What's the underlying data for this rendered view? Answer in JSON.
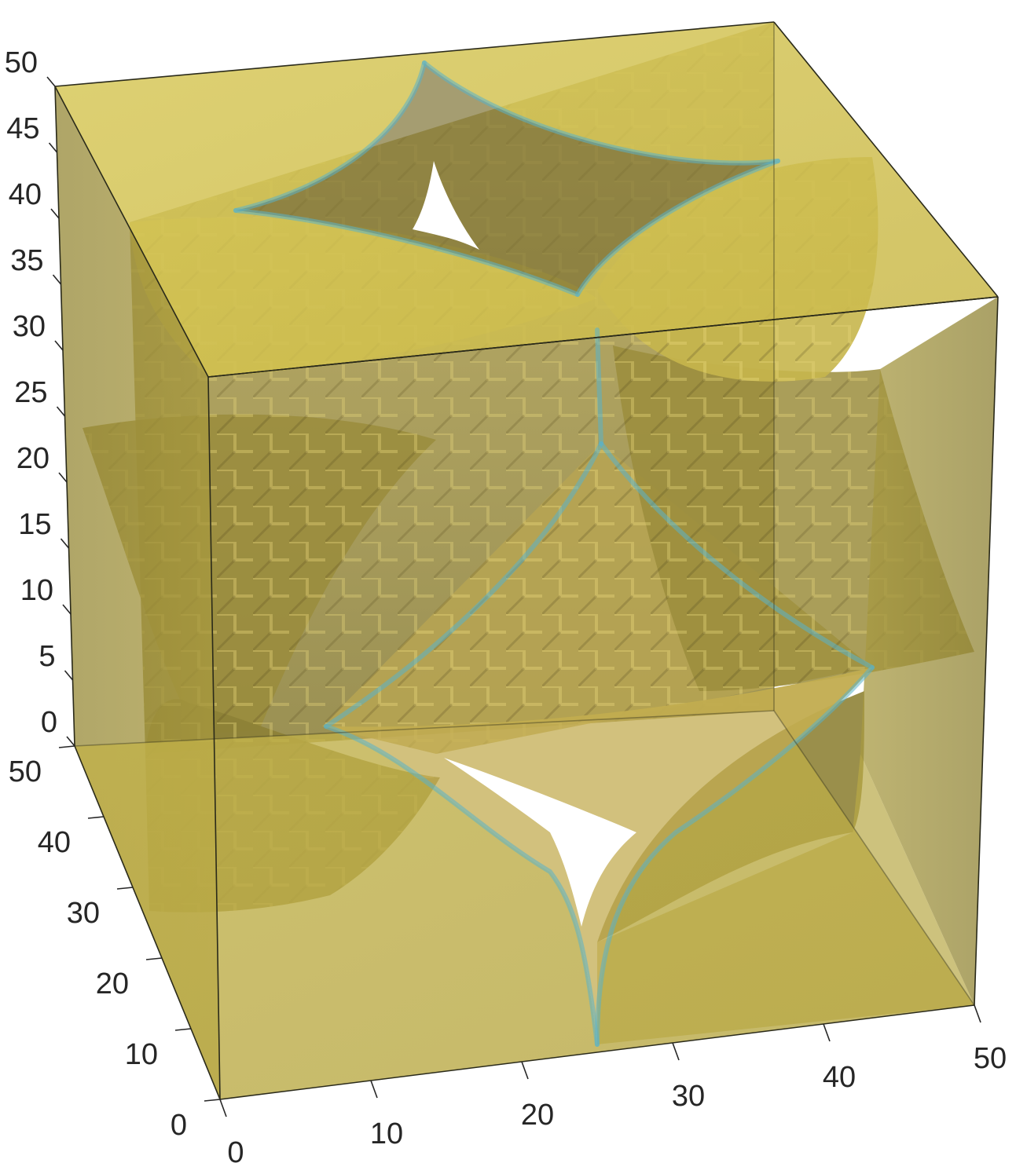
{
  "chart_data": {
    "type": "3d-isosurface",
    "title": "",
    "xlabel": "",
    "ylabel": "",
    "zlabel": "",
    "xlim": [
      0,
      50
    ],
    "ylim": [
      0,
      50
    ],
    "zlim": [
      0,
      50
    ],
    "x_ticks": [
      "0",
      "10",
      "20",
      "30",
      "40",
      "50"
    ],
    "y_ticks": [
      "0",
      "10",
      "20",
      "30",
      "40",
      "50"
    ],
    "z_ticks": [
      "0",
      "5",
      "10",
      "15",
      "20",
      "25",
      "30",
      "35",
      "40",
      "45",
      "50"
    ],
    "grid": false,
    "box": true,
    "surface_color": "#c9b84a",
    "surface_shadow_color": "#7d7030",
    "surface_highlight_color": "#e9d97a",
    "surface_alpha": 0.75,
    "edge_glow_color": "#5ab3c8"
  }
}
